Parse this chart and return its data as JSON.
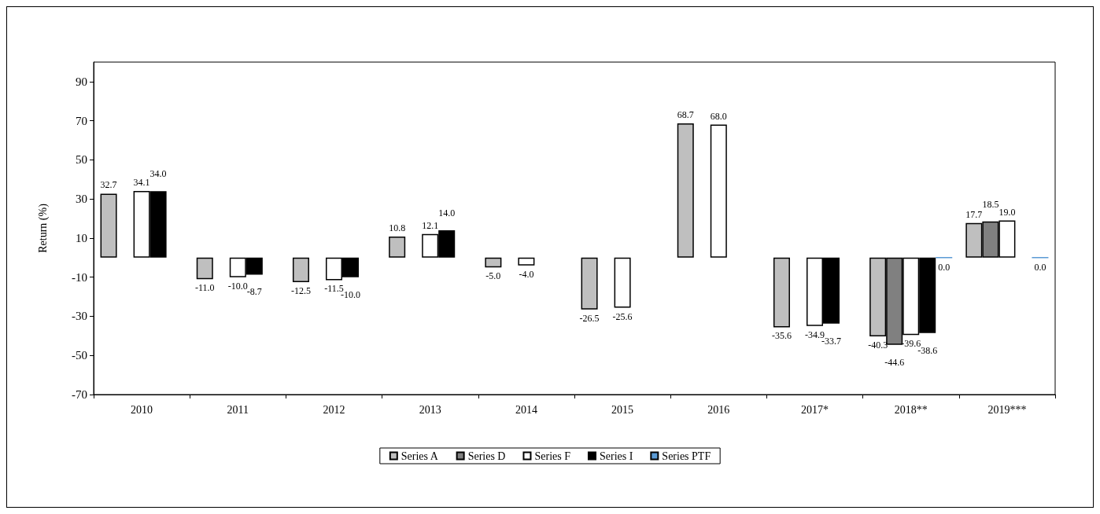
{
  "chart_data": {
    "type": "bar",
    "ylabel": "Return (%)",
    "categories": [
      "2010",
      "2011",
      "2012",
      "2013",
      "2014",
      "2015",
      "2016",
      "2017*",
      "2018**",
      "2019***"
    ],
    "ylim": [
      -70,
      100
    ],
    "yticks": [
      -70,
      -50,
      -30,
      -10,
      10,
      30,
      50,
      70,
      90
    ],
    "grid": false,
    "legend": "bottom",
    "series": [
      {
        "name": "Series A",
        "color": "#bfbfbf",
        "values": [
          32.7,
          -11.0,
          -12.5,
          10.8,
          -5.0,
          -26.5,
          68.7,
          -35.6,
          -40.3,
          17.7
        ],
        "value_labels": [
          "32.7",
          "-11.0",
          "-12.5",
          "10.8",
          "-5.0",
          "-26.5",
          "68.7",
          "-35.6",
          "-40.3",
          "17.7"
        ]
      },
      {
        "name": "Series D",
        "color": "#808080",
        "values": [
          null,
          null,
          null,
          null,
          null,
          null,
          null,
          null,
          -44.6,
          18.5
        ],
        "value_labels": [
          null,
          null,
          null,
          null,
          null,
          null,
          null,
          null,
          "-44.6",
          "18.5"
        ]
      },
      {
        "name": "Series F",
        "color": "#ffffff",
        "values": [
          34.1,
          -10.0,
          -11.5,
          12.1,
          -4.0,
          -25.6,
          68.0,
          -34.9,
          -39.6,
          19.0
        ],
        "value_labels": [
          "34.1",
          "-10.0",
          "-11.5",
          "12.1",
          "-4.0",
          "-25.6",
          "68.0",
          "-34.9",
          "-39.6",
          "19.0"
        ]
      },
      {
        "name": "Series I",
        "color": "#000000",
        "values": [
          34.0,
          -8.7,
          -10.0,
          14.0,
          null,
          null,
          null,
          -33.7,
          -38.6,
          null
        ],
        "value_labels": [
          "34.0",
          "-8.7",
          "-10.0",
          "14.0",
          null,
          null,
          null,
          "-33.7",
          "-38.6",
          null
        ]
      },
      {
        "name": "Series PTF",
        "color": "#5b9bd5",
        "values": [
          null,
          null,
          null,
          null,
          null,
          null,
          null,
          null,
          0.0,
          0.0
        ],
        "value_labels": [
          null,
          null,
          null,
          null,
          null,
          null,
          null,
          null,
          "0.0",
          "0.0"
        ]
      }
    ]
  }
}
